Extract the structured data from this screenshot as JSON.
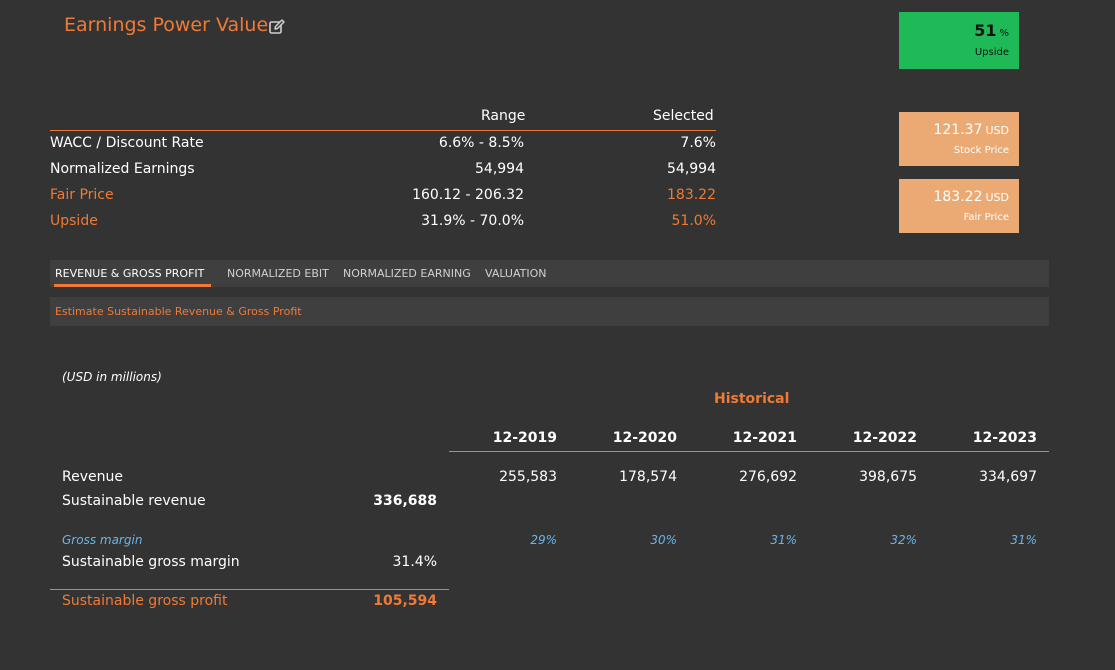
{
  "header": {
    "title": "Earnings Power Value",
    "edit_icon": "edit-icon"
  },
  "badges": {
    "upside": {
      "value": "51",
      "unit": "%",
      "label": "Upside",
      "color": "#1fba57"
    },
    "stock_price": {
      "value": "121.37",
      "unit": "USD",
      "label": "Stock Price",
      "color": "#ebaa74"
    },
    "fair_price": {
      "value": "183.22",
      "unit": "USD",
      "label": "Fair Price",
      "color": "#ebaa74"
    }
  },
  "summary": {
    "headers": {
      "range": "Range",
      "selected": "Selected"
    },
    "rows": [
      {
        "label": "WACC / Discount Rate",
        "range": "6.6% - 8.5%",
        "selected": "7.6%"
      },
      {
        "label": "Normalized Earnings",
        "range": "54,994",
        "selected": "54,994"
      },
      {
        "label": "Fair Price",
        "range": "160.12 - 206.32",
        "selected": "183.22"
      },
      {
        "label": "Upside",
        "range": "31.9% - 70.0%",
        "selected": "51.0%"
      }
    ]
  },
  "tabs": [
    {
      "label": "REVENUE & GROSS PROFIT",
      "active": true
    },
    {
      "label": "NORMALIZED EBIT",
      "active": false
    },
    {
      "label": "NORMALIZED EARNING",
      "active": false
    },
    {
      "label": "VALUATION",
      "active": false
    }
  ],
  "section_title": "Estimate Sustainable Revenue & Gross Profit",
  "detail": {
    "units_note": "(USD in millions)",
    "historical_label": "Historical",
    "years": [
      "12-2019",
      "12-2020",
      "12-2021",
      "12-2022",
      "12-2023"
    ],
    "revenue": {
      "label": "Revenue",
      "values": [
        "255,583",
        "178,574",
        "276,692",
        "398,675",
        "334,697"
      ]
    },
    "sustainable_revenue": {
      "label": "Sustainable revenue",
      "value": "336,688"
    },
    "gross_margin": {
      "label": "Gross margin",
      "values": [
        "29%",
        "30%",
        "31%",
        "32%",
        "31%"
      ]
    },
    "sustainable_gross_margin": {
      "label": "Sustainable gross margin",
      "value": "31.4%"
    },
    "sustainable_gross_profit": {
      "label": "Sustainable gross profit",
      "value": "105,594"
    }
  },
  "colors": {
    "accent": "#f07a35",
    "upside_green": "#1fba57",
    "price_badge": "#ebaa74",
    "margin_blue": "#6ab4ea",
    "background": "#333333"
  }
}
